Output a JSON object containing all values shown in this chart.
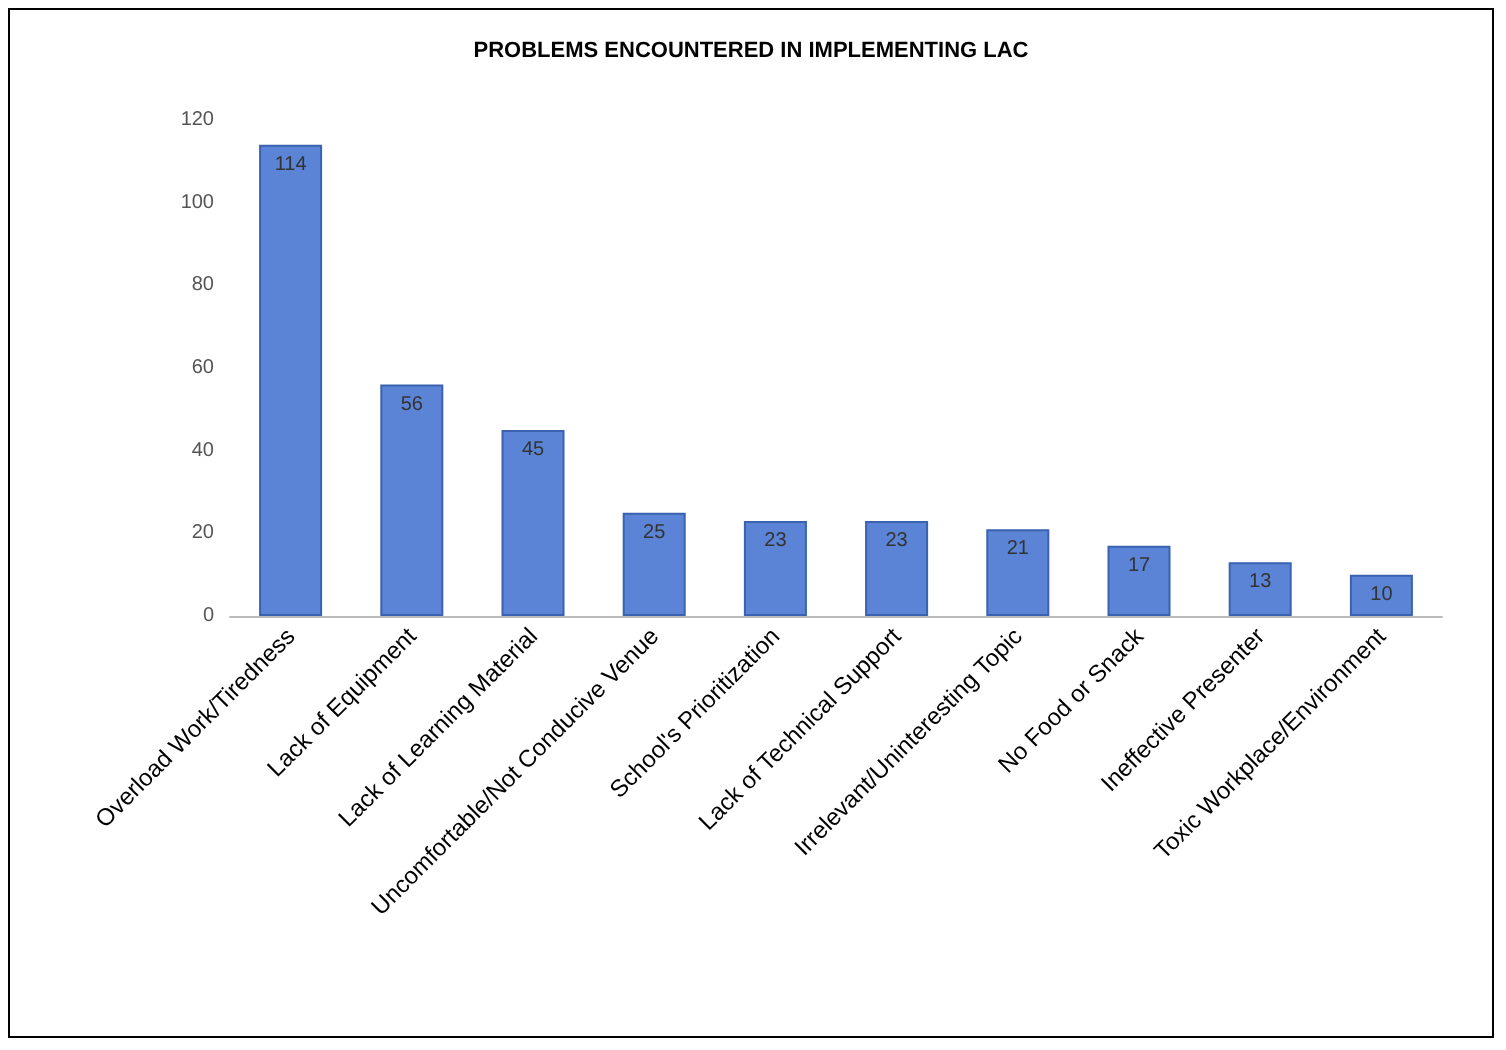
{
  "chart_data": {
    "type": "bar",
    "title": "PROBLEMS ENCOUNTERED IN IMPLEMENTING LAC",
    "categories": [
      "Overload Work/Tiredness",
      "Lack of Equipment",
      "Lack of Learning Material",
      "Uncomfortable/Not Conducive Venue",
      "School's Prioritization",
      "Lack of Technical Support",
      "Irrelevant/Uninteresting Topic",
      "No Food or Snack",
      "Ineffective Presenter",
      "Toxic Workplace/Environment"
    ],
    "values": [
      114,
      56,
      45,
      25,
      23,
      23,
      21,
      17,
      13,
      10
    ],
    "color": "#5b84d6",
    "ylim": [
      0,
      120
    ],
    "yticks": [
      0,
      20,
      40,
      60,
      80,
      100,
      120
    ],
    "grid": false,
    "data_labels": true
  }
}
